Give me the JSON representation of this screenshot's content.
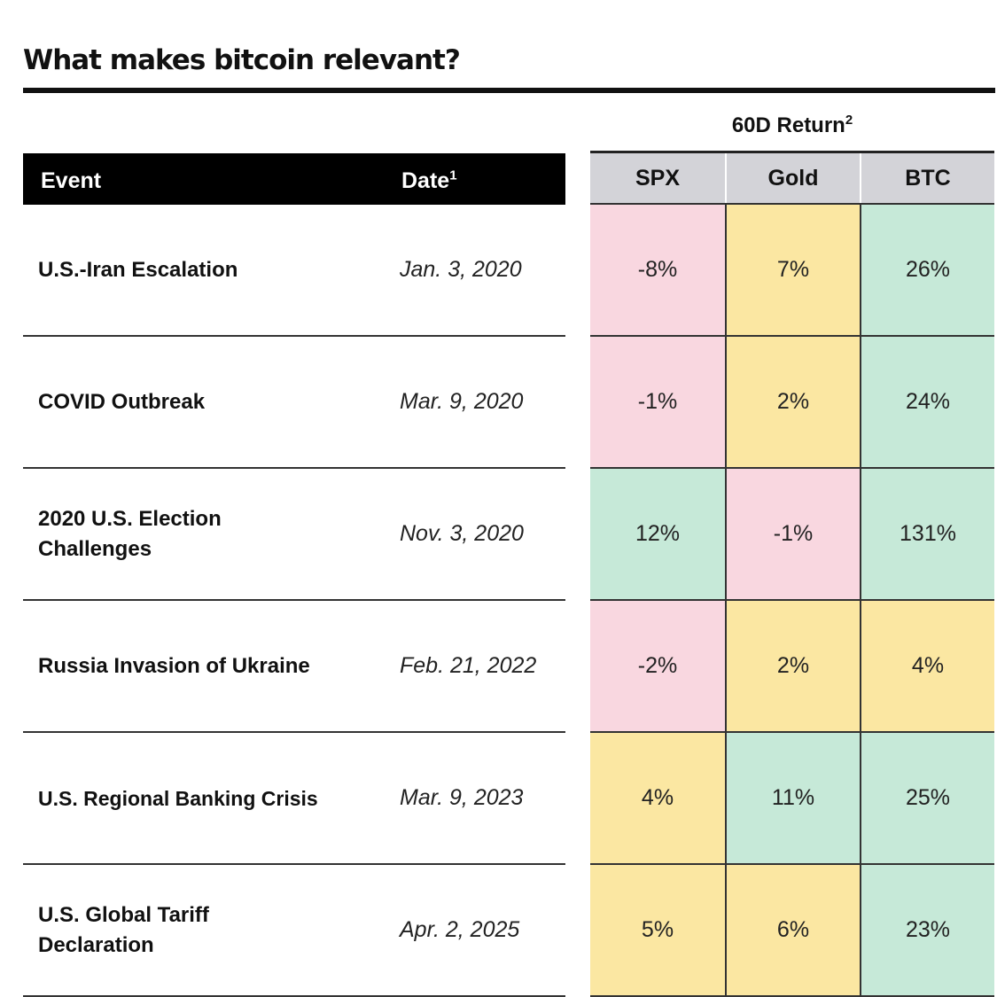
{
  "title": "What makes bitcoin relevant?",
  "group_header": {
    "label": "60D Return",
    "footnote": "2"
  },
  "left_headers": {
    "event": "Event",
    "date": "Date",
    "date_footnote": "1"
  },
  "columns": [
    "SPX",
    "Gold",
    "BTC"
  ],
  "colors": {
    "negative": "#f9d7e0",
    "neutral": "#fbe7a2",
    "positive": "#c6e9d8",
    "header_band": "#000000",
    "column_header": "#d3d3d8"
  },
  "rows": [
    {
      "event": "U.S.-Iran Escalation",
      "date": "Jan. 3, 2020",
      "values": [
        "-8%",
        "7%",
        "26%"
      ],
      "tones": [
        "red",
        "yellow",
        "green"
      ]
    },
    {
      "event": "COVID Outbreak",
      "date": "Mar. 9, 2020",
      "values": [
        "-1%",
        "2%",
        "24%"
      ],
      "tones": [
        "red",
        "yellow",
        "green"
      ]
    },
    {
      "event": "2020 U.S. Election Challenges",
      "date": "Nov. 3, 2020",
      "values": [
        "12%",
        "-1%",
        "131%"
      ],
      "tones": [
        "green",
        "red",
        "green"
      ]
    },
    {
      "event": "Russia Invasion of Ukraine",
      "date": "Feb. 21, 2022",
      "values": [
        "-2%",
        "2%",
        "4%"
      ],
      "tones": [
        "red",
        "yellow",
        "yellow"
      ]
    },
    {
      "event": "U.S. Regional Banking Crisis",
      "date": "Mar. 9, 2023",
      "values": [
        "4%",
        "11%",
        "25%"
      ],
      "tones": [
        "yellow",
        "green",
        "green"
      ]
    },
    {
      "event": "U.S. Global Tariff Declaration",
      "date": "Apr. 2, 2025",
      "values": [
        "5%",
        "6%",
        "23%"
      ],
      "tones": [
        "yellow",
        "yellow",
        "green"
      ]
    }
  ]
}
